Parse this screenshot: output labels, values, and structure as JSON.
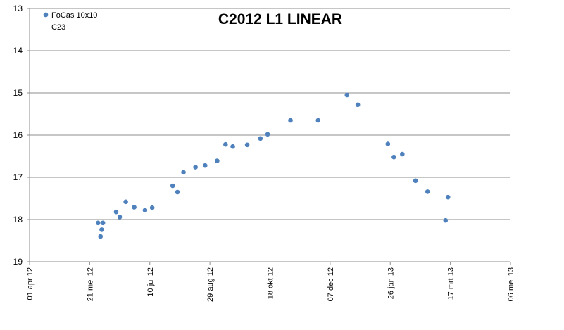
{
  "chart_data": {
    "type": "scatter",
    "title": "C2012 L1 LINEAR",
    "xlabel": "",
    "ylabel": "",
    "x_range": [
      "2012-04-01",
      "2013-05-06"
    ],
    "y_range": [
      13,
      19
    ],
    "y_inverted": true,
    "y_ticks": [
      "13",
      "14",
      "15",
      "16",
      "17",
      "18",
      "19"
    ],
    "x_ticks": [
      "01 apr 12",
      "21 mei 12",
      "10 jul 12",
      "29 aug 12",
      "18 okt 12",
      "07 dec 12",
      "26 jan 13",
      "17 mrt 13",
      "06 mei 13"
    ],
    "grid": "horizontal",
    "legend_position": "top-left",
    "marker_color": "#4f81bd",
    "series": [
      {
        "name": "FoCas 10x10",
        "points": [
          {
            "x": "2012-05-28",
            "y": 18.08
          },
          {
            "x": "2012-05-30",
            "y": 18.4
          },
          {
            "x": "2012-05-31",
            "y": 18.24
          },
          {
            "x": "2012-06-01",
            "y": 18.08
          },
          {
            "x": "2012-06-12",
            "y": 17.82
          },
          {
            "x": "2012-06-15",
            "y": 17.94
          },
          {
            "x": "2012-06-20",
            "y": 17.58
          },
          {
            "x": "2012-06-27",
            "y": 17.71
          },
          {
            "x": "2012-07-06",
            "y": 17.78
          },
          {
            "x": "2012-07-12",
            "y": 17.72
          },
          {
            "x": "2012-07-29",
            "y": 17.2
          },
          {
            "x": "2012-08-02",
            "y": 17.35
          },
          {
            "x": "2012-08-07",
            "y": 16.88
          },
          {
            "x": "2012-08-17",
            "y": 16.76
          },
          {
            "x": "2012-08-25",
            "y": 16.72
          },
          {
            "x": "2012-09-04",
            "y": 16.61
          },
          {
            "x": "2012-09-11",
            "y": 16.22
          },
          {
            "x": "2012-09-17",
            "y": 16.27
          },
          {
            "x": "2012-09-29",
            "y": 16.23
          },
          {
            "x": "2012-10-10",
            "y": 16.08
          },
          {
            "x": "2012-10-16",
            "y": 15.98
          },
          {
            "x": "2012-11-04",
            "y": 15.65
          },
          {
            "x": "2012-11-27",
            "y": 15.65
          },
          {
            "x": "2012-12-21",
            "y": 15.05
          },
          {
            "x": "2012-12-30",
            "y": 15.28
          },
          {
            "x": "2013-01-24",
            "y": 16.21
          },
          {
            "x": "2013-01-29",
            "y": 16.52
          },
          {
            "x": "2013-02-05",
            "y": 16.45
          },
          {
            "x": "2013-02-16",
            "y": 17.08
          },
          {
            "x": "2013-02-26",
            "y": 17.34
          },
          {
            "x": "2013-03-13",
            "y": 18.02
          },
          {
            "x": "2013-03-15",
            "y": 17.47
          }
        ]
      }
    ],
    "legend_extra_text": "C23"
  }
}
